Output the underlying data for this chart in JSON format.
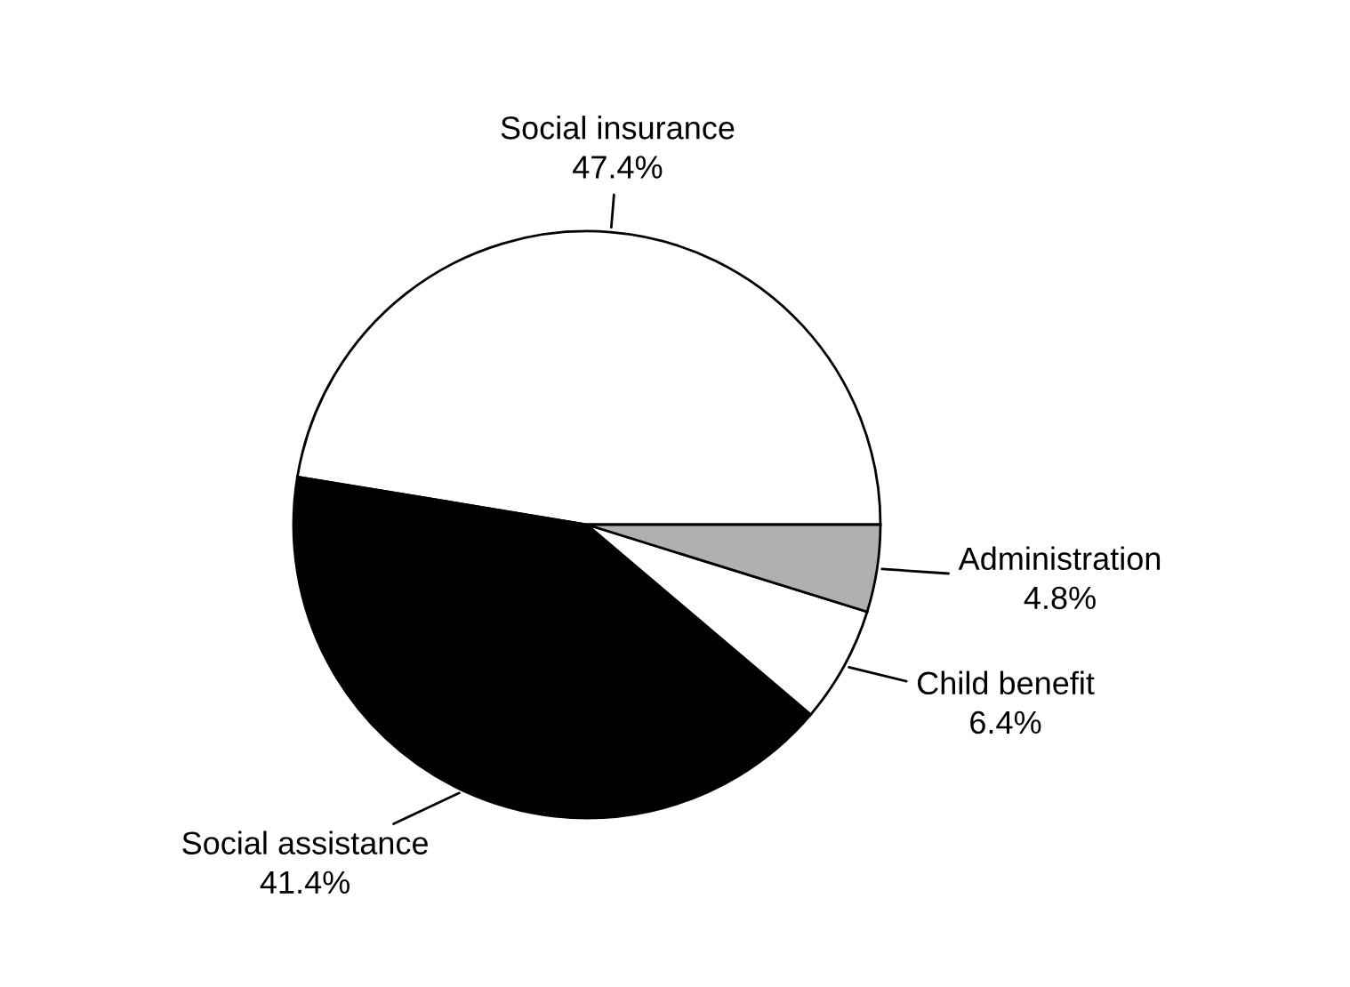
{
  "chart_data": {
    "type": "pie",
    "categories": [
      "Social insurance",
      "Social assistance",
      "Child benefit",
      "Administration"
    ],
    "values": [
      47.4,
      41.4,
      6.4,
      4.8
    ],
    "value_labels": [
      "47.4%",
      "41.4%",
      "6.4%",
      "4.8%"
    ],
    "colors": [
      "#ffffff",
      "#000000",
      "#ffffff",
      "#b0b0b0"
    ]
  }
}
